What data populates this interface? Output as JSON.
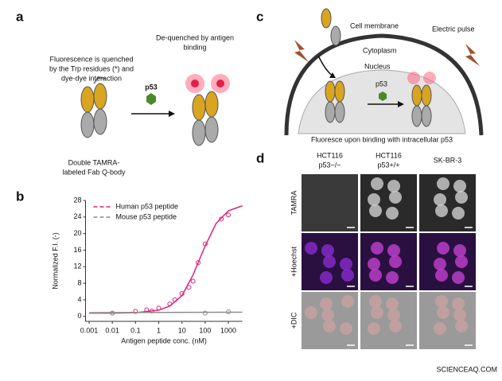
{
  "panel_a": {
    "label": "a",
    "quench_note": [
      "Fluorescence is quenched",
      "by the Trp residues (*) and",
      "dye-dye interaction"
    ],
    "dequench_note": [
      "De-quenched by antigen",
      "binding"
    ],
    "antigen": "p53",
    "caption": [
      "Double TAMRA-",
      "labeled Fab Q-body"
    ]
  },
  "panel_b": {
    "label": "b"
  },
  "chart_data": {
    "type": "scatter",
    "x_label": "Antigen peptide conc. (nM)",
    "y_label": "Normalized F.I. (-)",
    "xscale": "log",
    "xlim": [
      0.0007,
      4000
    ],
    "xticks": [
      0.001,
      0.01,
      0.1,
      1,
      10,
      100,
      1000
    ],
    "ylim": [
      -1.2,
      28
    ],
    "yticks": [
      0,
      4,
      8,
      12,
      16,
      20,
      24,
      28
    ],
    "legend": "upper left",
    "series": [
      {
        "name": "Human p53 peptide",
        "color": "#e0207a",
        "x": [
          0.01,
          0.1,
          0.3,
          0.5,
          1,
          3,
          5,
          10,
          20,
          30,
          50,
          100,
          500,
          1000
        ],
        "values": [
          0.8,
          1.2,
          1.6,
          1.3,
          2,
          3,
          4,
          5.5,
          7,
          8.5,
          13,
          17.5,
          23.5,
          24.5
        ],
        "fit_x": [
          0.001,
          0.01,
          0.1,
          1,
          3,
          10,
          30,
          100,
          300,
          1000,
          4000
        ],
        "fit_values": [
          0.8,
          0.8,
          0.9,
          1.5,
          2.5,
          5,
          10,
          17,
          22.5,
          25.5,
          26.7
        ]
      },
      {
        "name": "Mouse p53 peptide",
        "color": "#8c8c8c",
        "x": [
          0.01,
          100,
          1000
        ],
        "values": [
          0.8,
          0.8,
          1.1
        ],
        "fit_x": [
          0.001,
          4000
        ],
        "fit_values": [
          0.9,
          1.0
        ]
      }
    ]
  },
  "panel_c": {
    "label": "c",
    "membrane": "Cell membrane",
    "pulse": "Electric pulse",
    "cytoplasm": "Cytoplasm",
    "nucleus": "Nucleus",
    "antigen": "p53",
    "caption": "Fluoresce upon binding with intracellular p53"
  },
  "panel_d": {
    "label": "d",
    "columns": [
      [
        "HCT116",
        "p53−/−"
      ],
      [
        "HCT116",
        "p53+/+"
      ],
      [
        "SK-BR-3"
      ]
    ],
    "rows": [
      "TAMRA",
      "+Hoechst",
      "+DIC"
    ]
  },
  "watermark": "SCIENCEAQ.COM"
}
